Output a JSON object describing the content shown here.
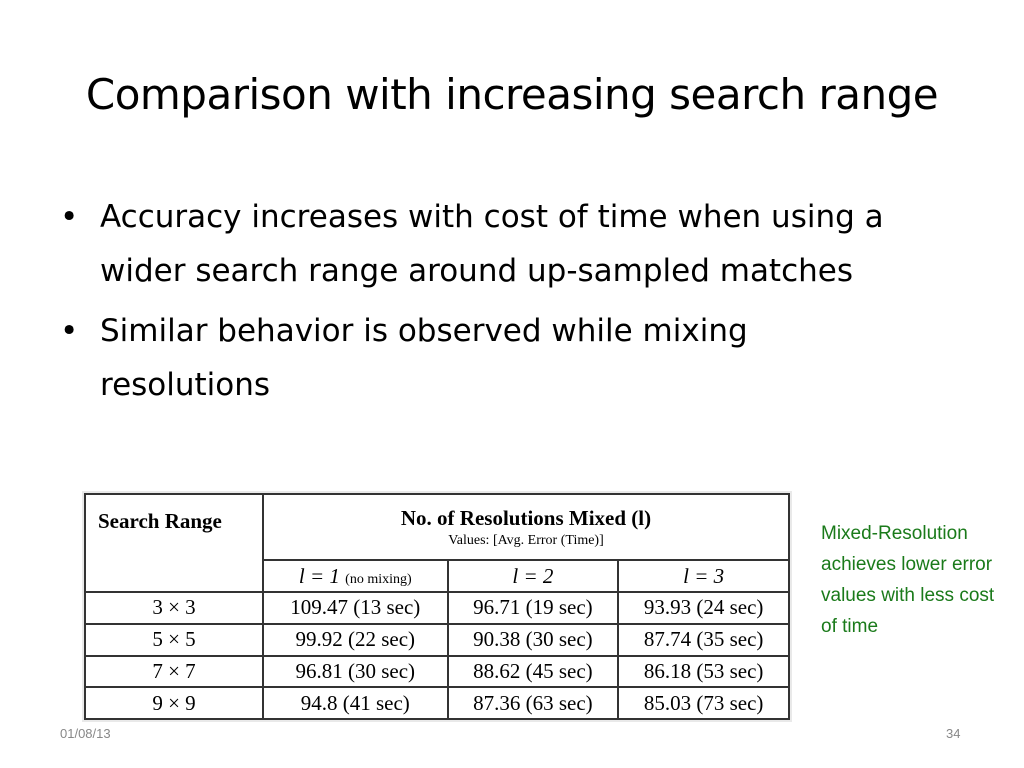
{
  "slide": {
    "title": "Comparison with increasing search range",
    "bullets": [
      "Accuracy increases with cost of time when using a wider search range around up-sampled matches",
      "Similar behavior is observed while mixing resolutions"
    ],
    "bullet_glyph": "•"
  },
  "table": {
    "corner_header": "Search Range",
    "group_header": "No. of Resolutions Mixed (l)",
    "group_subheader": "Values: [Avg. Error (Time)]",
    "columns": [
      {
        "label": "l = 1",
        "note": "(no mixing)"
      },
      {
        "label": "l = 2",
        "note": ""
      },
      {
        "label": "l = 3",
        "note": ""
      }
    ],
    "rows": [
      {
        "range": "3 × 3",
        "cells": [
          "109.47 (13 sec)",
          "96.71 (19 sec)",
          "93.93 (24 sec)"
        ]
      },
      {
        "range": "5 × 5",
        "cells": [
          "99.92 (22 sec)",
          "90.38 (30 sec)",
          "87.74 (35 sec)"
        ]
      },
      {
        "range": "7 × 7",
        "cells": [
          "96.81 (30 sec)",
          "88.62 (45 sec)",
          "86.18 (53 sec)"
        ]
      },
      {
        "range": "9 × 9",
        "cells": [
          "94.8 (41 sec)",
          "87.36 (63 sec)",
          "85.03 (73 sec)"
        ]
      }
    ]
  },
  "side_note": "Mixed-Resolution achieves lower error values with less cost of time",
  "footer": {
    "date": "01/08/13",
    "page_number": "34"
  },
  "colors": {
    "side_note": "#1a7a1a",
    "footer": "#888888"
  }
}
